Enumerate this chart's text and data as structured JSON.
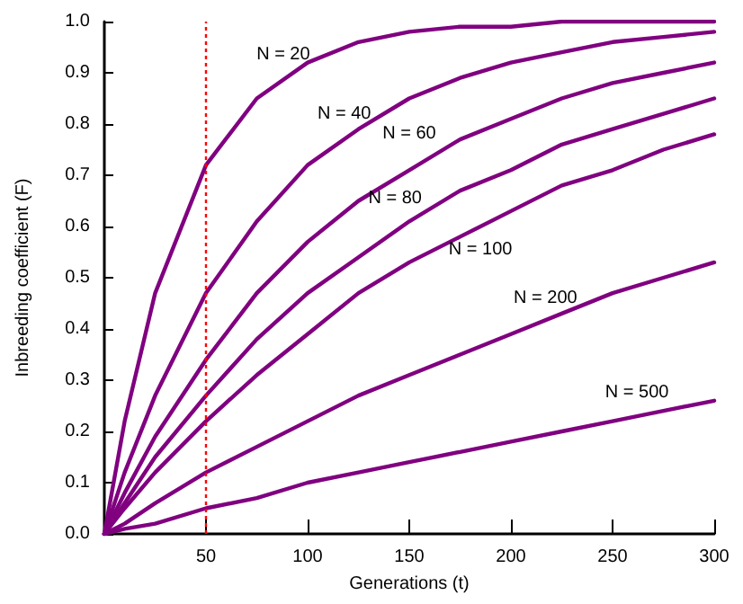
{
  "chart_data": {
    "type": "line",
    "xlabel": "Generations (t)",
    "ylabel": "Inbreeding coefficient (F)",
    "x": [
      0,
      10,
      25,
      50,
      75,
      100,
      125,
      150,
      175,
      200,
      225,
      250,
      275,
      300
    ],
    "series": [
      {
        "name": "N = 20",
        "color": "#800080",
        "values": [
          0,
          0.22,
          0.47,
          0.72,
          0.85,
          0.92,
          0.96,
          0.98,
          0.99,
          0.99,
          1.0,
          1.0,
          1.0,
          1.0
        ]
      },
      {
        "name": "N = 40",
        "color": "#800080",
        "values": [
          0,
          0.12,
          0.27,
          0.47,
          0.61,
          0.72,
          0.79,
          0.85,
          0.89,
          0.92,
          0.94,
          0.96,
          0.97,
          0.98
        ]
      },
      {
        "name": "N = 60",
        "color": "#800080",
        "values": [
          0,
          0.08,
          0.19,
          0.34,
          0.47,
          0.57,
          0.65,
          0.71,
          0.77,
          0.81,
          0.85,
          0.88,
          0.9,
          0.92
        ]
      },
      {
        "name": "N = 80",
        "color": "#800080",
        "values": [
          0,
          0.06,
          0.15,
          0.27,
          0.38,
          0.47,
          0.54,
          0.61,
          0.67,
          0.71,
          0.76,
          0.79,
          0.82,
          0.85
        ]
      },
      {
        "name": "N = 100",
        "color": "#800080",
        "values": [
          0,
          0.05,
          0.12,
          0.22,
          0.31,
          0.39,
          0.47,
          0.53,
          0.58,
          0.63,
          0.68,
          0.71,
          0.75,
          0.78
        ]
      },
      {
        "name": "N = 200",
        "color": "#800080",
        "values": [
          0,
          0.02,
          0.06,
          0.12,
          0.17,
          0.22,
          0.27,
          0.31,
          0.35,
          0.39,
          0.43,
          0.47,
          0.5,
          0.53
        ]
      },
      {
        "name": "N = 500",
        "color": "#800080",
        "values": [
          0,
          0.01,
          0.02,
          0.05,
          0.07,
          0.1,
          0.12,
          0.14,
          0.16,
          0.18,
          0.2,
          0.22,
          0.24,
          0.26
        ]
      }
    ],
    "xlim": [
      0,
      300
    ],
    "xticks": [
      50,
      100,
      150,
      200,
      250,
      300
    ],
    "ylim": [
      0,
      1
    ],
    "yticks": [
      {
        "value": 0,
        "label": "0.0"
      },
      {
        "value": 0.1,
        "label": "0.1"
      },
      {
        "value": 0.2,
        "label": "0.2"
      },
      {
        "value": 0.3,
        "label": "0.3"
      },
      {
        "value": 0.4,
        "label": "0.4"
      },
      {
        "value": 0.5,
        "label": "0.5"
      },
      {
        "value": 0.6,
        "label": "0.6"
      },
      {
        "value": 0.7,
        "label": "0.7"
      },
      {
        "value": 0.8,
        "label": "0.8"
      },
      {
        "value": 0.9,
        "label": "0.9"
      },
      {
        "value": 1,
        "label": "1.0"
      }
    ],
    "ref_lines": [
      {
        "axis": "x",
        "value": 50,
        "color": "#ff0000",
        "line_style": "dotted"
      }
    ],
    "grid": false,
    "legend": false,
    "marker": "none",
    "line_style": "solid"
  }
}
